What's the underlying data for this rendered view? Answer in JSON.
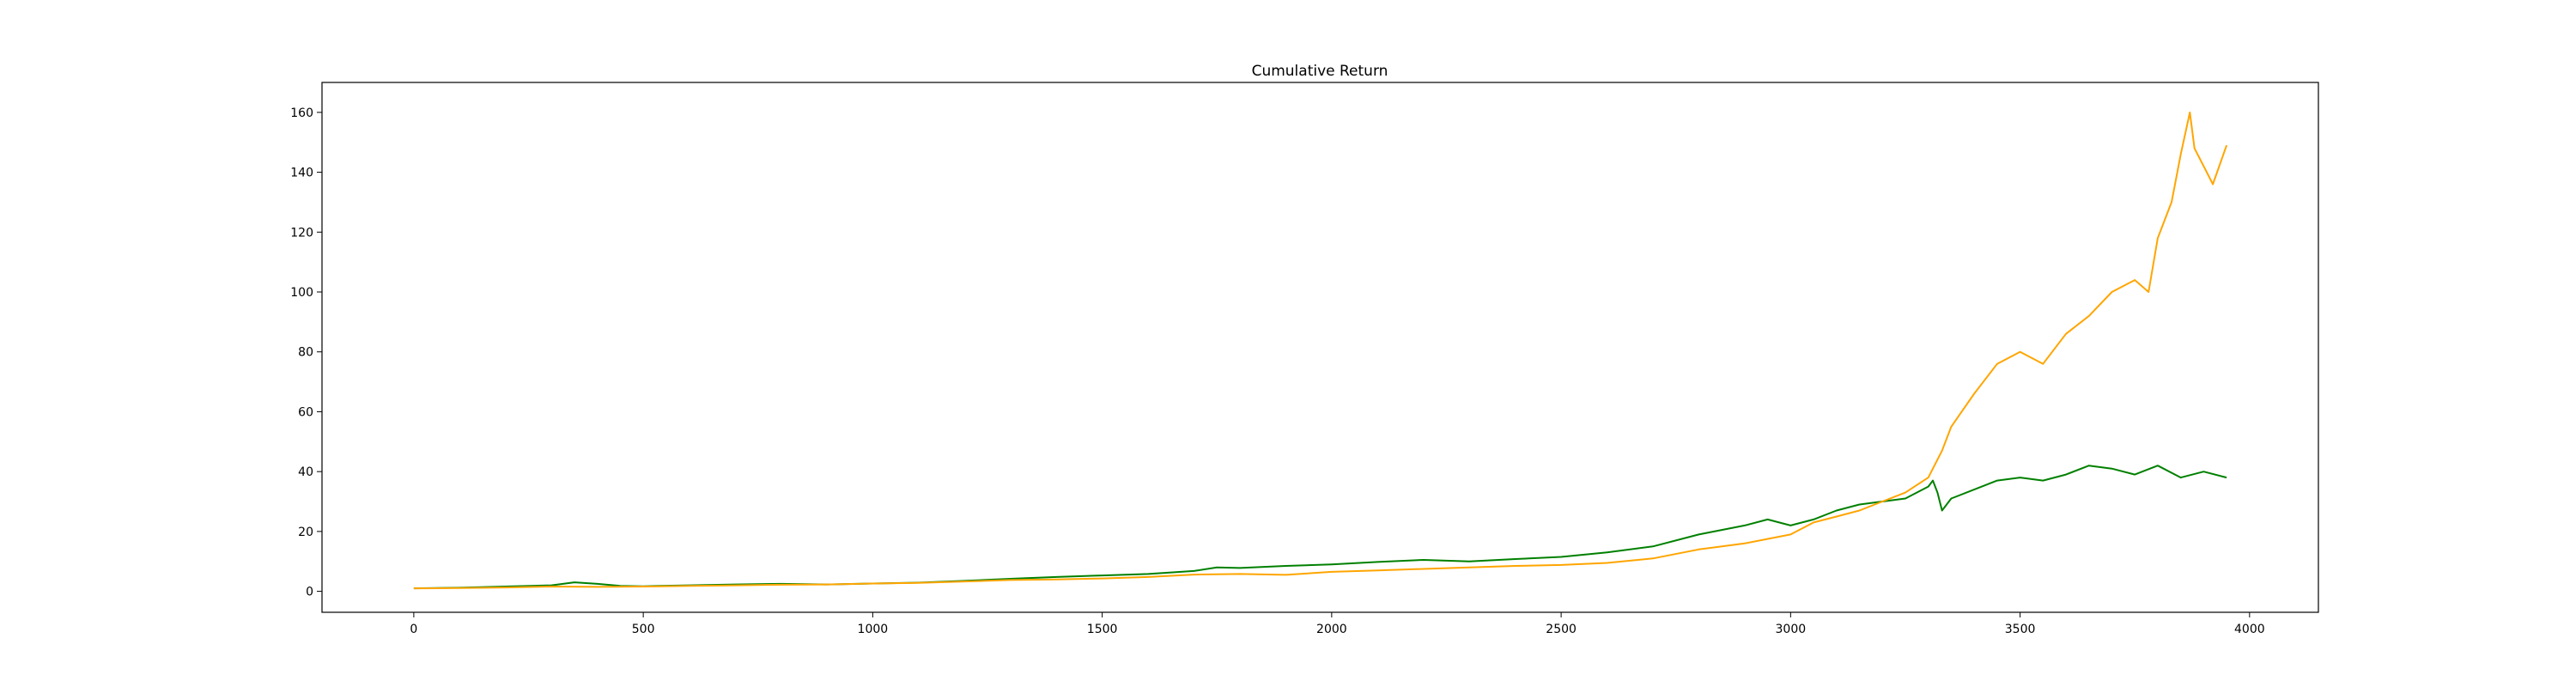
{
  "chart_data": {
    "type": "line",
    "title": "Cumulative Return",
    "xlabel": "",
    "ylabel": "",
    "xlim": [
      -200,
      4150
    ],
    "ylim": [
      -7,
      170
    ],
    "xticks": [
      0,
      500,
      1000,
      1500,
      2000,
      2500,
      3000,
      3500,
      4000
    ],
    "yticks": [
      0,
      20,
      40,
      60,
      80,
      100,
      120,
      140,
      160
    ],
    "grid": false,
    "legend": "none",
    "series": [
      {
        "color": "#008000",
        "x": [
          0,
          100,
          200,
          300,
          350,
          400,
          450,
          500,
          600,
          700,
          800,
          900,
          1000,
          1100,
          1200,
          1300,
          1400,
          1500,
          1600,
          1700,
          1750,
          1800,
          1900,
          2000,
          2100,
          2200,
          2300,
          2400,
          2500,
          2600,
          2700,
          2800,
          2900,
          2950,
          3000,
          3050,
          3100,
          3150,
          3200,
          3250,
          3300,
          3310,
          3320,
          3330,
          3350,
          3400,
          3450,
          3500,
          3550,
          3600,
          3650,
          3700,
          3750,
          3800,
          3850,
          3900,
          3950
        ],
        "values": [
          1.0,
          1.2,
          1.6,
          2.0,
          3.0,
          2.5,
          1.8,
          1.7,
          2.0,
          2.3,
          2.5,
          2.3,
          2.6,
          2.9,
          3.5,
          4.2,
          4.8,
          5.3,
          5.8,
          6.8,
          8.0,
          7.8,
          8.5,
          9.0,
          9.8,
          10.5,
          10.0,
          10.8,
          11.5,
          13.0,
          15.0,
          19.0,
          22.0,
          24.0,
          22.0,
          24.0,
          27.0,
          29.0,
          30.0,
          31.0,
          35.0,
          37.0,
          33.0,
          27.0,
          31.0,
          34.0,
          37.0,
          38.0,
          37.0,
          39.0,
          42.0,
          41.0,
          39.0,
          42.0,
          38.0,
          40.0,
          38.0
        ]
      },
      {
        "color": "#FFA500",
        "x": [
          0,
          100,
          200,
          300,
          400,
          500,
          600,
          700,
          800,
          900,
          1000,
          1100,
          1200,
          1300,
          1400,
          1500,
          1600,
          1700,
          1800,
          1900,
          2000,
          2100,
          2200,
          2300,
          2400,
          2500,
          2600,
          2700,
          2800,
          2900,
          3000,
          3050,
          3100,
          3150,
          3200,
          3250,
          3300,
          3330,
          3350,
          3400,
          3450,
          3500,
          3550,
          3600,
          3650,
          3700,
          3750,
          3780,
          3800,
          3830,
          3850,
          3870,
          3880,
          3900,
          3920,
          3950
        ],
        "values": [
          1.0,
          1.1,
          1.3,
          1.6,
          1.5,
          1.6,
          1.8,
          2.0,
          2.2,
          2.3,
          2.6,
          2.8,
          3.3,
          3.8,
          4.0,
          4.3,
          4.8,
          5.6,
          5.8,
          5.5,
          6.5,
          7.0,
          7.5,
          8.0,
          8.5,
          8.8,
          9.5,
          11.0,
          14.0,
          16.0,
          19.0,
          23.0,
          25.0,
          27.0,
          30.0,
          33.0,
          38.0,
          47.0,
          55.0,
          66.0,
          76.0,
          80.0,
          76.0,
          86.0,
          92.0,
          100.0,
          104.0,
          100.0,
          118.0,
          130.0,
          146.0,
          160.0,
          148.0,
          142.0,
          136.0,
          149.0
        ]
      }
    ]
  }
}
